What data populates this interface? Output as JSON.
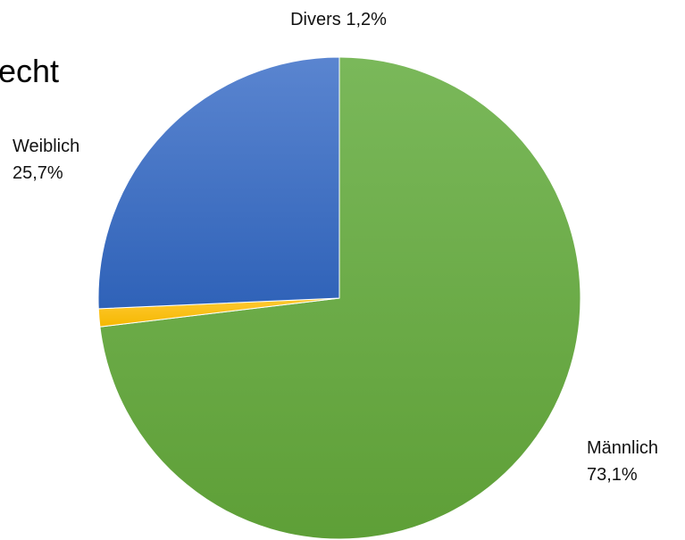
{
  "chart_data": {
    "type": "pie",
    "title": "echt",
    "start_angle_deg": 0,
    "direction": "clockwise",
    "slices": [
      {
        "name": "Männlich",
        "value": 73.1,
        "label_value": "73,1%",
        "color": "#70ad47"
      },
      {
        "name": "Divers",
        "value": 1.2,
        "label_value": "1,2%",
        "color": "#ffc000"
      },
      {
        "name": "Weiblich",
        "value": 25.7,
        "label_value": "25,7%",
        "color": "#4472c4"
      }
    ],
    "legend": "none",
    "data_labels": "category-name-and-percent"
  }
}
